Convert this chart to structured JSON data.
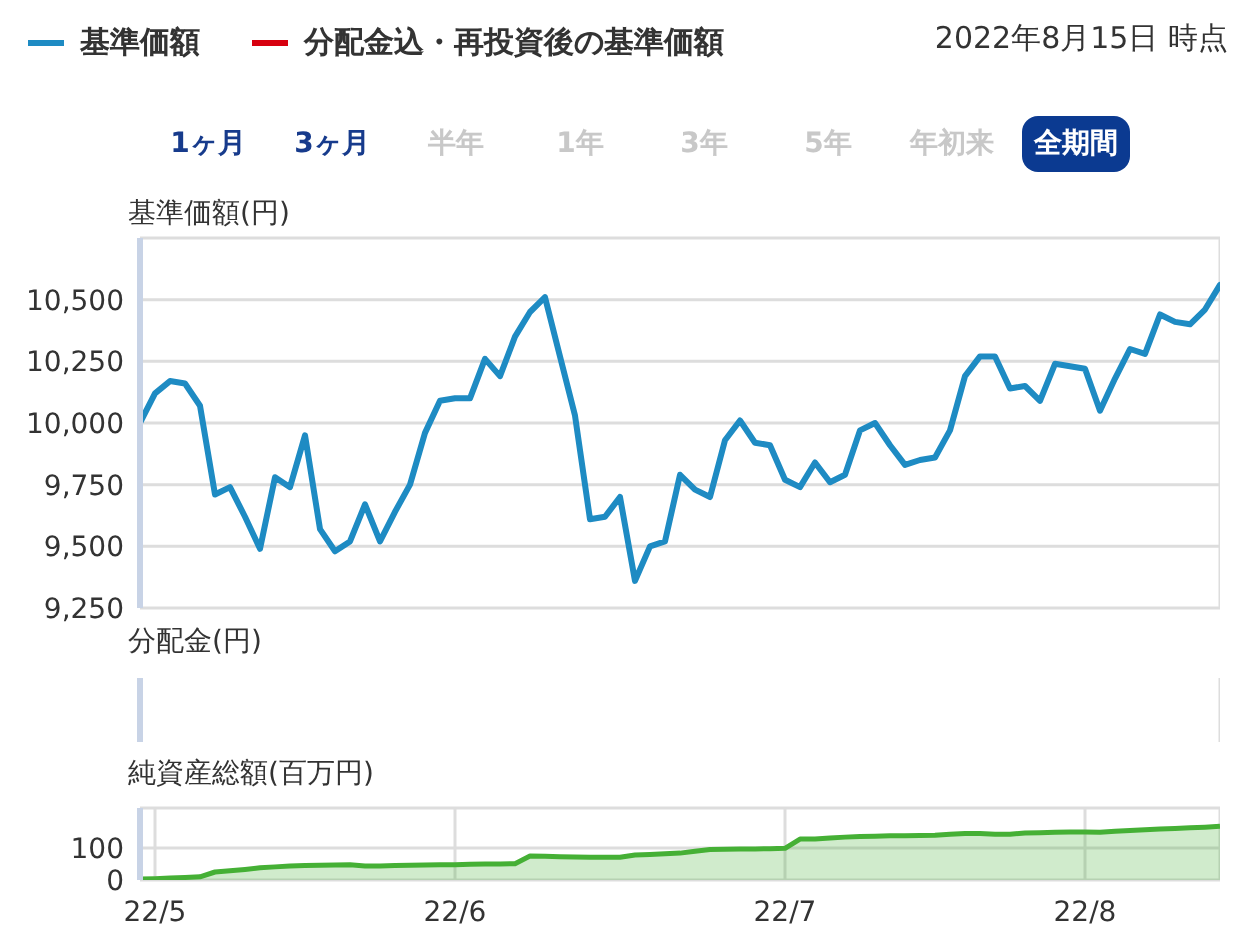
{
  "chart_data": [
    {
      "type": "line",
      "title": "基準価額(円)",
      "legend": "top left",
      "grid": true,
      "tick_labels": "y",
      "annotations": [
        "2022年8月15日 時点",
        "1ヶ月",
        "3ヶ月",
        "半年",
        "1年",
        "3年",
        "5年",
        "年初来",
        "全期間"
      ],
      "categories": [
        null,
        null,
        null,
        null,
        null,
        null,
        null,
        null,
        null,
        null,
        null,
        null,
        null,
        null,
        null,
        null,
        null,
        null,
        null,
        null,
        null,
        null,
        null,
        null,
        null,
        null,
        null,
        null,
        null,
        null,
        null,
        null,
        null,
        null,
        null,
        null,
        null,
        null,
        null,
        null,
        null,
        null,
        null,
        null,
        null,
        null,
        null,
        null,
        null,
        null,
        null,
        null,
        null,
        null,
        null,
        null,
        null,
        null,
        null,
        null,
        null,
        null,
        null,
        null,
        null,
        null,
        null,
        null,
        null,
        null,
        null,
        null,
        null
      ],
      "ylim": [
        9250,
        10750
      ],
      "yticks": [
        {
          "value": 9250,
          "label": "9,250"
        },
        {
          "value": 9500,
          "label": "9,500"
        },
        {
          "value": 9750,
          "label": "9,750"
        },
        {
          "value": 10000,
          "label": "10,000"
        },
        {
          "value": 10250,
          "label": "10,250"
        },
        {
          "value": 10500,
          "label": "10,500"
        },
        {
          "value": 10750,
          "label": null
        }
      ],
      "series": [
        {
          "name": "基準価額",
          "color": "#1e8bc3",
          "values": [
            10000,
            10120,
            10170,
            10160,
            10070,
            9710,
            9740,
            9620,
            9490,
            9780,
            9740,
            9950,
            9570,
            9480,
            9520,
            9670,
            9520,
            9640,
            9750,
            9960,
            10090,
            10100,
            10100,
            10260,
            10190,
            10350,
            10450,
            10510,
            10270,
            10030,
            9610,
            9620,
            9700,
            9360,
            9500,
            9520,
            9790,
            9730,
            9700,
            9930,
            10010,
            9920,
            9910,
            9770,
            9740,
            9840,
            9760,
            9790,
            9970,
            10000,
            9910,
            9830,
            9850,
            9860,
            9970,
            10190,
            10270,
            10270,
            10140,
            10150,
            10090,
            10240,
            10230,
            10220,
            10050,
            10180,
            10300,
            10280,
            10440,
            10410,
            10400,
            10460,
            10560
          ]
        },
        {
          "name": "分配金込・再投資後の基準価額",
          "color": "#d7000f",
          "values": [
            null,
            null,
            null,
            null,
            null,
            null,
            null,
            null,
            null,
            null,
            null,
            null,
            null,
            null,
            null,
            null,
            null,
            null,
            null,
            null,
            null,
            null,
            null,
            null,
            null,
            null,
            null,
            null,
            null,
            null,
            null,
            null,
            null,
            null,
            null,
            null,
            null,
            null,
            null,
            null,
            null,
            null,
            null,
            null,
            null,
            null,
            null,
            null,
            null,
            null,
            null,
            null,
            null,
            null,
            null,
            null,
            null,
            null,
            null,
            null,
            null,
            null,
            null,
            null,
            null,
            null,
            null,
            null,
            null,
            null,
            null,
            null,
            null
          ]
        }
      ]
    },
    {
      "type": "other",
      "title": "分配金(円)"
    },
    {
      "type": "area",
      "title": "純資産総額(百万円)",
      "grid": true,
      "color": "#45b035",
      "categories": [
        null,
        "22/5",
        null,
        null,
        null,
        null,
        null,
        null,
        null,
        null,
        null,
        null,
        null,
        null,
        null,
        null,
        null,
        null,
        null,
        null,
        null,
        "22/6",
        null,
        null,
        null,
        null,
        null,
        null,
        null,
        null,
        null,
        null,
        null,
        null,
        null,
        null,
        null,
        null,
        null,
        null,
        null,
        null,
        null,
        "22/7",
        null,
        null,
        null,
        null,
        null,
        null,
        null,
        null,
        null,
        null,
        null,
        null,
        null,
        null,
        null,
        null,
        null,
        null,
        null,
        "22/8",
        null,
        null,
        null,
        null,
        null,
        null,
        null,
        null,
        null
      ],
      "ylim": [
        0,
        225
      ],
      "yticks": [
        0,
        100,
        {
          "value": 225,
          "label": null
        }
      ],
      "values": [
        3,
        4,
        6,
        8,
        10,
        25,
        29,
        33,
        38,
        41,
        44,
        45,
        46,
        47,
        48,
        44,
        44,
        45,
        46,
        47,
        48,
        48,
        49,
        50,
        50,
        51,
        75,
        74,
        73,
        72,
        71,
        71,
        71,
        78,
        80,
        82,
        84,
        90,
        95,
        96,
        97,
        97,
        98,
        99,
        128,
        128,
        131,
        134,
        136,
        137,
        138,
        138,
        139,
        140,
        143,
        145,
        145,
        143,
        143,
        147,
        148,
        149,
        150,
        150,
        149,
        152,
        155,
        157,
        159,
        161,
        163,
        165,
        168
      ]
    }
  ]
}
